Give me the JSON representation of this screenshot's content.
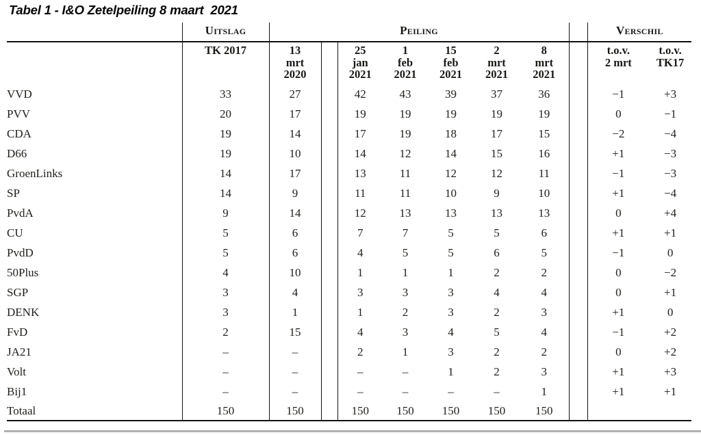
{
  "title": "Tabel 1 - I&O Zetelpeiling 8 maart  2021",
  "table": {
    "group_headers": {
      "uitslag": "Uitslag",
      "peiling": "Peiling",
      "verschil": "Verschil"
    },
    "column_headers": {
      "result": "TK 2017",
      "polls": [
        "13\nmrt\n2020",
        "25\njan\n2021",
        "1\nfeb\n2021",
        "15\nfeb\n2021",
        "2\nmrt\n2021",
        "8\nmrt\n2021"
      ],
      "diff": [
        "t.o.v.\n2 mrt",
        "t.o.v.\nTK17"
      ]
    },
    "rows": [
      {
        "party": "VVD",
        "values": [
          "33",
          "27",
          "42",
          "43",
          "39",
          "37",
          "36",
          "−1",
          "+3"
        ]
      },
      {
        "party": "PVV",
        "values": [
          "20",
          "17",
          "19",
          "19",
          "19",
          "19",
          "19",
          "0",
          "−1"
        ]
      },
      {
        "party": "CDA",
        "values": [
          "19",
          "14",
          "17",
          "19",
          "18",
          "17",
          "15",
          "−2",
          "−4"
        ]
      },
      {
        "party": "D66",
        "values": [
          "19",
          "10",
          "14",
          "12",
          "14",
          "15",
          "16",
          "+1",
          "−3"
        ]
      },
      {
        "party": "GroenLinks",
        "values": [
          "14",
          "17",
          "13",
          "11",
          "12",
          "12",
          "11",
          "−1",
          "−3"
        ]
      },
      {
        "party": "SP",
        "values": [
          "14",
          "9",
          "11",
          "11",
          "10",
          "9",
          "10",
          "+1",
          "−4"
        ]
      },
      {
        "party": "PvdA",
        "values": [
          "9",
          "14",
          "12",
          "13",
          "13",
          "13",
          "13",
          "0",
          "+4"
        ]
      },
      {
        "party": "CU",
        "values": [
          "5",
          "6",
          "7",
          "7",
          "5",
          "5",
          "6",
          "+1",
          "+1"
        ]
      },
      {
        "party": "PvdD",
        "values": [
          "5",
          "6",
          "4",
          "5",
          "5",
          "6",
          "5",
          "−1",
          "0"
        ]
      },
      {
        "party": "50Plus",
        "values": [
          "4",
          "10",
          "1",
          "1",
          "1",
          "2",
          "2",
          "0",
          "−2"
        ]
      },
      {
        "party": "SGP",
        "values": [
          "3",
          "4",
          "3",
          "3",
          "3",
          "4",
          "4",
          "0",
          "+1"
        ]
      },
      {
        "party": "DENK",
        "values": [
          "3",
          "1",
          "1",
          "2",
          "3",
          "2",
          "3",
          "+1",
          "0"
        ]
      },
      {
        "party": "FvD",
        "values": [
          "2",
          "15",
          "4",
          "3",
          "4",
          "5",
          "4",
          "−1",
          "+2"
        ]
      },
      {
        "party": "JA21",
        "values": [
          "–",
          "–",
          "2",
          "1",
          "3",
          "2",
          "2",
          "0",
          "+2"
        ]
      },
      {
        "party": "Volt",
        "values": [
          "–",
          "–",
          "–",
          "–",
          "1",
          "2",
          "3",
          "+1",
          "+3"
        ]
      },
      {
        "party": "Bij1",
        "values": [
          "–",
          "–",
          "–",
          "–",
          "–",
          "–",
          "1",
          "+1",
          "+1"
        ]
      },
      {
        "party": "Totaal",
        "values": [
          "150",
          "150",
          "150",
          "150",
          "150",
          "150",
          "150",
          "",
          ""
        ]
      }
    ]
  },
  "colors": {
    "background": "#ffffff",
    "text": "#21201c",
    "line": "#111111",
    "bottom_band": "#b0b0b0"
  }
}
